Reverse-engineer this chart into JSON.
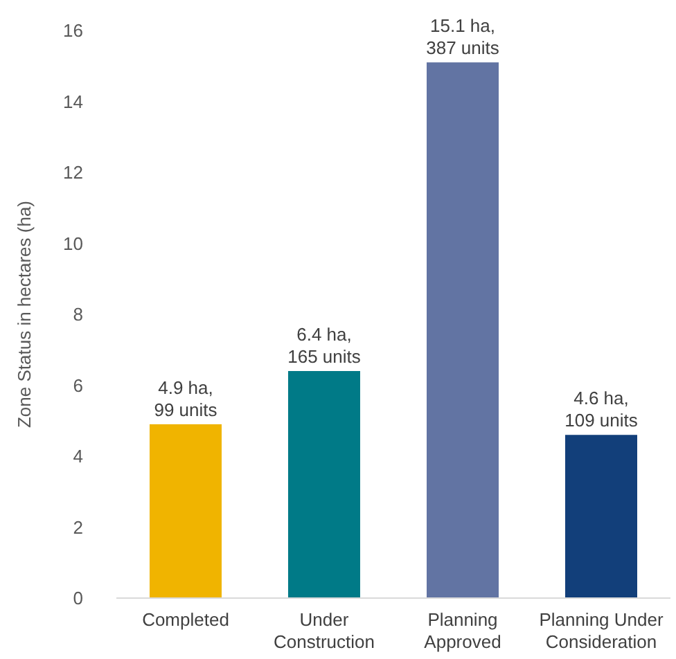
{
  "chart_data": {
    "type": "bar",
    "ylabel": "Zone Status in hectares (ha)",
    "categories": [
      "Completed",
      "Under Construction",
      "Planning Approved",
      "Planning Under Consideration"
    ],
    "values": [
      4.9,
      6.4,
      15.1,
      4.6
    ],
    "colors": [
      "#f0b400",
      "#007a87",
      "#6274a3",
      "#123f7a"
    ],
    "value_labels": [
      "4.9 ha, 99 units",
      "6.4 ha, 165 units",
      "15.1 ha, 387 units",
      "4.6 ha, 109 units"
    ],
    "ylim": [
      0,
      16
    ],
    "yticks": [
      0,
      2,
      4,
      6,
      8,
      10,
      12,
      14,
      16
    ],
    "grid": false
  }
}
